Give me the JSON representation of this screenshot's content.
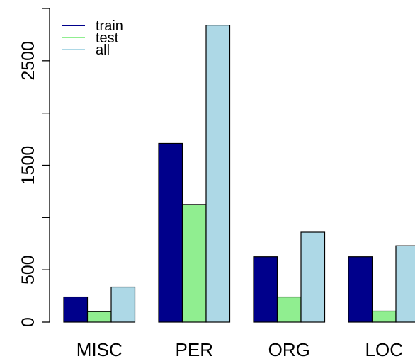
{
  "chart_data": {
    "type": "bar",
    "categories": [
      "MISC",
      "PER",
      "ORG",
      "LOC"
    ],
    "series": [
      {
        "name": "train",
        "color": "#00008B",
        "values": [
          240,
          1710,
          625,
          625
        ]
      },
      {
        "name": "test",
        "color": "#90EE90",
        "values": [
          100,
          1125,
          240,
          105
        ]
      },
      {
        "name": "all",
        "color": "#ADD8E6",
        "values": [
          335,
          2840,
          860,
          730
        ]
      }
    ],
    "y_ticks": [
      0,
      500,
      1500,
      2500
    ],
    "y_tick_labels": [
      "0",
      "500",
      "1500",
      "2500"
    ],
    "y_axis_ticks": [
      0,
      500,
      1000,
      1500,
      2000,
      2500,
      3000
    ],
    "ylim": [
      0,
      3000
    ],
    "grid": false,
    "legend_position": "top-left"
  }
}
